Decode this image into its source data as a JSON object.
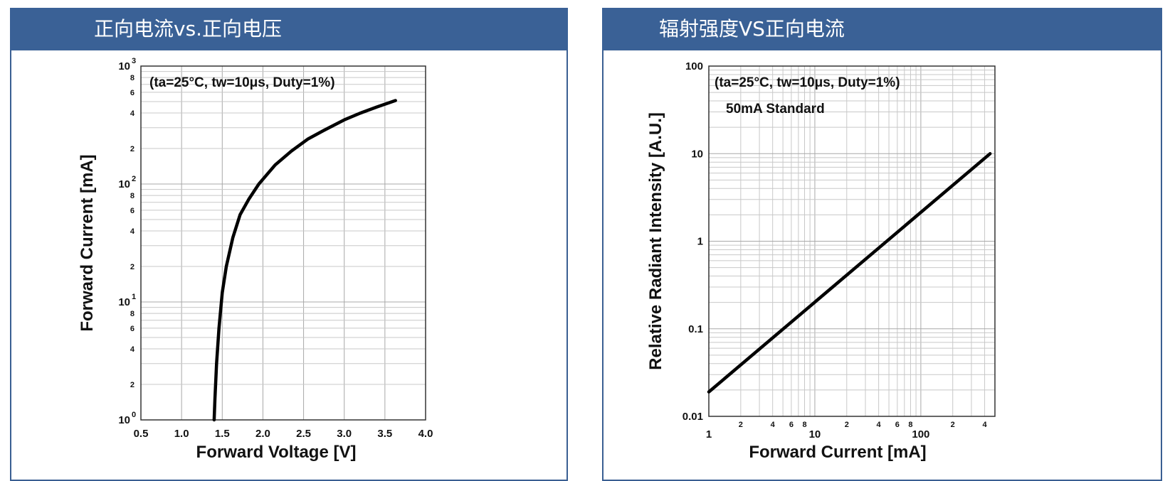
{
  "panels": [
    {
      "header": "正向电流vs.正向电压"
    },
    {
      "header": "辐射强度VS正向电流"
    }
  ],
  "chart_data": [
    {
      "type": "line",
      "title": "正向电流vs.正向电压",
      "annotation": "(ta=25°C, tw=10μs, Duty=1%)",
      "xlabel": "Forward Voltage [V]",
      "ylabel": "Forward Current [mA]",
      "xlim": [
        0.5,
        4.0
      ],
      "ylim": [
        1,
        1000
      ],
      "yscale": "log",
      "grid": true,
      "x_ticks": [
        "0.5",
        "1.0",
        "1.5",
        "2.0",
        "2.5",
        "3.0",
        "3.5",
        "4.0"
      ],
      "y_major_ticks": [
        {
          "base": "10",
          "exp": "0"
        },
        {
          "base": "10",
          "exp": "1"
        },
        {
          "base": "10",
          "exp": "2"
        },
        {
          "base": "10",
          "exp": "3"
        }
      ],
      "y_minor_labels": [
        "2",
        "4",
        "6",
        "8"
      ],
      "series": [
        {
          "x": [
            1.4,
            1.41,
            1.43,
            1.46,
            1.5,
            1.55,
            1.63,
            1.72,
            1.83,
            1.95,
            2.15,
            2.35,
            2.55,
            2.75,
            3.0,
            3.2,
            3.4,
            3.63
          ],
          "y": [
            1,
            1.5,
            3,
            6,
            12,
            20,
            35,
            55,
            75,
            100,
            145,
            190,
            240,
            285,
            350,
            400,
            450,
            510
          ]
        }
      ]
    },
    {
      "type": "line",
      "title": "辐射强度VS正向电流",
      "annotation": "(ta=25°C, tw=10μs, Duty=1%)",
      "annotation2": "50mA Standard",
      "xlabel": "Forward Current [mA]",
      "ylabel": "Relative Radiant Intensity [A.U.]",
      "xlim": [
        1,
        500
      ],
      "ylim": [
        0.01,
        100
      ],
      "xscale": "log",
      "yscale": "log",
      "grid": true,
      "x_major_labels": [
        "1",
        "10",
        "100"
      ],
      "x_minor_labels": [
        "2",
        "4",
        "6",
        "8"
      ],
      "y_major_labels": [
        "0.01",
        "0.1",
        "1",
        "10",
        "100"
      ],
      "series": [
        {
          "x": [
            1,
            450
          ],
          "y": [
            0.019,
            10
          ]
        }
      ]
    }
  ]
}
